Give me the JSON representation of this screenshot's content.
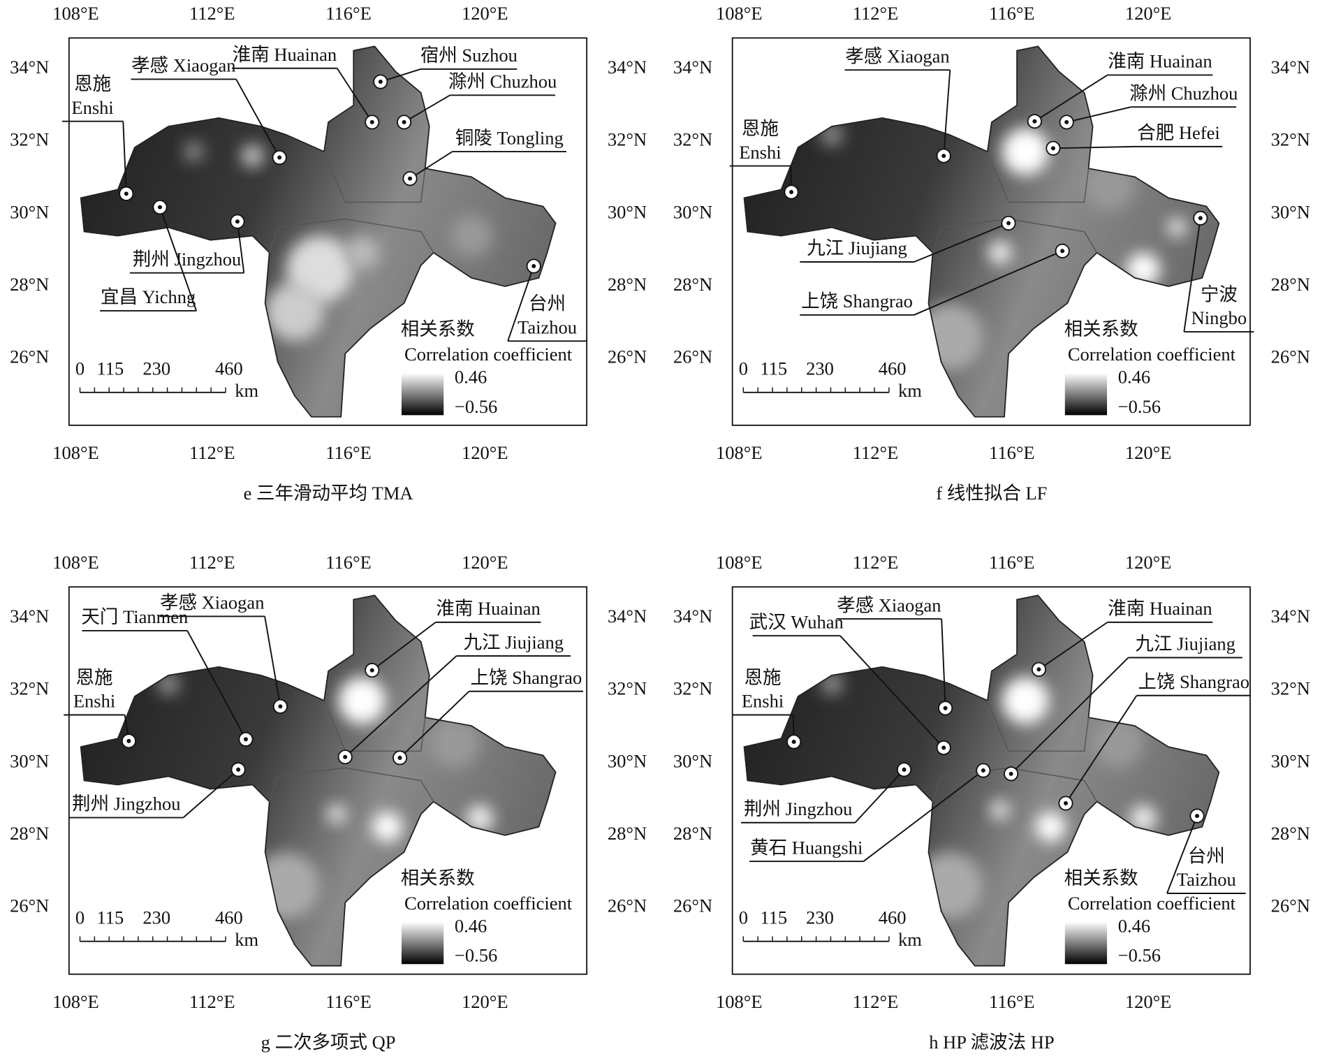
{
  "lon_labels": [
    "108°E",
    "112°E",
    "116°E",
    "120°E"
  ],
  "lat_labels": [
    "34°N",
    "32°N",
    "30°N",
    "28°N",
    "26°N"
  ],
  "scale_labels": [
    "0",
    "115",
    "230",
    "460"
  ],
  "scale_unit": "km",
  "legend": {
    "title": "相关系数",
    "subtitle": "Correlation coefficient",
    "max": "0.46",
    "min": "−0.56"
  },
  "panels": [
    {
      "caption": "e 三年滑动平均 TMA",
      "cities": [
        {
          "label": [
            "恩施",
            "Enshi"
          ]
        },
        {
          "label": [
            "孝感 Xiaogan"
          ]
        },
        {
          "label": [
            "淮南 Huainan"
          ]
        },
        {
          "label": [
            "宿州 Suzhou"
          ]
        },
        {
          "label": [
            "滁州 Chuzhou"
          ]
        },
        {
          "label": [
            "铜陵 Tongling"
          ]
        },
        {
          "label": [
            "荆州 Jingzhou"
          ]
        },
        {
          "label": [
            "宜昌 Yichng"
          ]
        },
        {
          "label": [
            "台州",
            "Taizhou"
          ]
        }
      ]
    },
    {
      "caption": "f 线性拟合 LF",
      "cities": [
        {
          "label": [
            "孝感 Xiaogan"
          ]
        },
        {
          "label": [
            "恩施",
            "Enshi"
          ]
        },
        {
          "label": [
            "淮南 Huainan"
          ]
        },
        {
          "label": [
            "滁州 Chuzhou"
          ]
        },
        {
          "label": [
            "合肥 Hefei"
          ]
        },
        {
          "label": [
            "九江 Jiujiang"
          ]
        },
        {
          "label": [
            "上饶 Shangrao"
          ]
        },
        {
          "label": [
            "宁波",
            "Ningbo"
          ]
        }
      ]
    },
    {
      "caption": "g 二次多项式 QP",
      "cities": [
        {
          "label": [
            "天门 Tianmen"
          ]
        },
        {
          "label": [
            "孝感 Xiaogan"
          ]
        },
        {
          "label": [
            "恩施",
            "Enshi"
          ]
        },
        {
          "label": [
            "淮南 Huainan"
          ]
        },
        {
          "label": [
            "九江 Jiujiang"
          ]
        },
        {
          "label": [
            "上饶 Shangrao"
          ]
        },
        {
          "label": [
            "荆州 Jingzhou"
          ]
        }
      ]
    },
    {
      "caption": "h HP 滤波法 HP",
      "cities": [
        {
          "label": [
            "武汉 Wuhan"
          ]
        },
        {
          "label": [
            "孝感 Xiaogan"
          ]
        },
        {
          "label": [
            "恩施",
            "Enshi"
          ]
        },
        {
          "label": [
            "淮南 Huainan"
          ]
        },
        {
          "label": [
            "九江 Jiujiang"
          ]
        },
        {
          "label": [
            "上饶 Shangrao"
          ]
        },
        {
          "label": [
            "荆州 Jingzhou"
          ]
        },
        {
          "label": [
            "黄石 Huangshi"
          ]
        },
        {
          "label": [
            "台州",
            "Taizhou"
          ]
        }
      ]
    }
  ]
}
